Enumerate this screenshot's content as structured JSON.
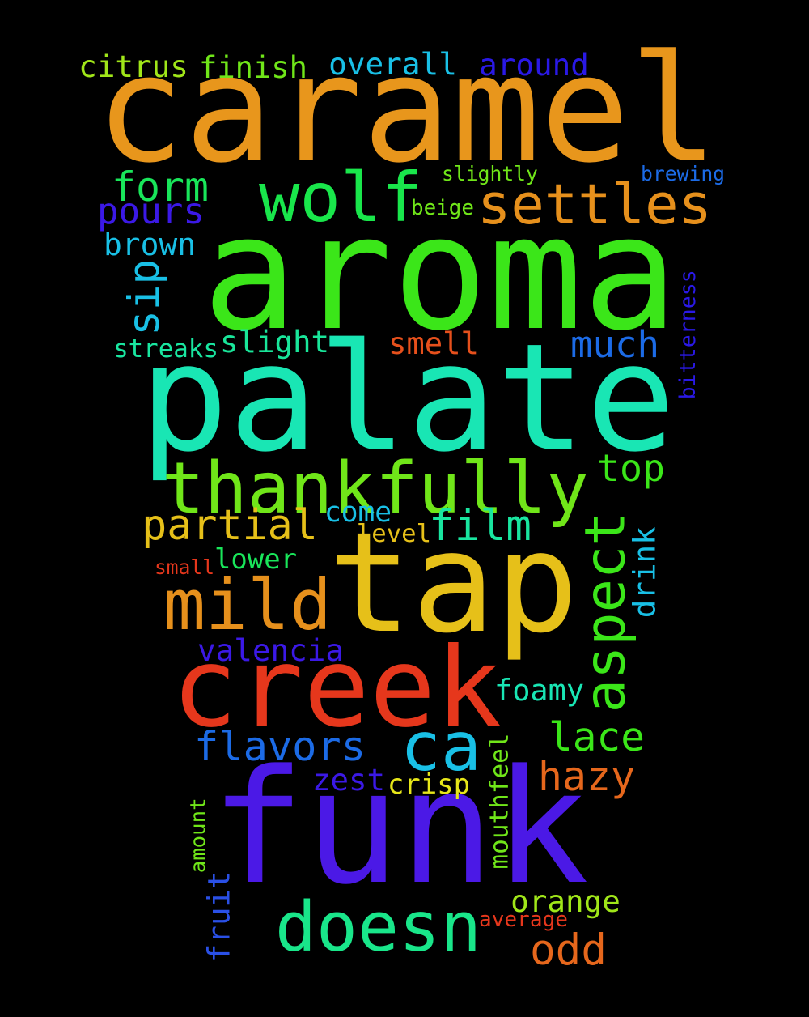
{
  "word_cloud": {
    "words": [
      {
        "id": "caramel",
        "text": "caramel",
        "color": "#e8961c"
      },
      {
        "id": "aroma",
        "text": "aroma",
        "color": "#3be619"
      },
      {
        "id": "palate",
        "text": "palate",
        "color": "#19e6b4"
      },
      {
        "id": "tap",
        "text": "tap",
        "color": "#e6c019"
      },
      {
        "id": "funk",
        "text": "funk",
        "color": "#4b19e6"
      },
      {
        "id": "creek",
        "text": "creek",
        "color": "#e6371c"
      },
      {
        "id": "thankfully",
        "text": "thankfully",
        "color": "#70e619"
      },
      {
        "id": "wolf",
        "text": "wolf",
        "color": "#19e64b"
      },
      {
        "id": "mild",
        "text": "mild",
        "color": "#e6901c"
      },
      {
        "id": "doesn",
        "text": "doesn",
        "color": "#19e68a"
      },
      {
        "id": "ca",
        "text": "ca",
        "color": "#19c0e6"
      },
      {
        "id": "aspect",
        "text": "aspect",
        "color": "#3be619"
      },
      {
        "id": "settles",
        "text": "settles",
        "color": "#e6901c"
      },
      {
        "id": "partial",
        "text": "partial",
        "color": "#e6c019"
      },
      {
        "id": "flavors",
        "text": "flavors",
        "color": "#1c6be6"
      },
      {
        "id": "film",
        "text": "film",
        "color": "#19e6a0"
      },
      {
        "id": "lace",
        "text": "lace",
        "color": "#3be619"
      },
      {
        "id": "hazy",
        "text": "hazy",
        "color": "#e6671c"
      },
      {
        "id": "odd",
        "text": "odd",
        "color": "#e6671c"
      },
      {
        "id": "form",
        "text": "form",
        "color": "#19e65a"
      },
      {
        "id": "top",
        "text": "top",
        "color": "#3be619"
      },
      {
        "id": "much",
        "text": "much",
        "color": "#1c6be6"
      },
      {
        "id": "pours",
        "text": "pours",
        "color": "#3b19e6"
      },
      {
        "id": "citrus",
        "text": "citrus",
        "color": "#a0e619"
      },
      {
        "id": "finish",
        "text": "finish",
        "color": "#70e619"
      },
      {
        "id": "overall",
        "text": "overall",
        "color": "#19c0e6"
      },
      {
        "id": "around",
        "text": "around",
        "color": "#2a19e6"
      },
      {
        "id": "sip",
        "text": "sip",
        "color": "#19c0e6"
      },
      {
        "id": "brown",
        "text": "brown",
        "color": "#19c0e6"
      },
      {
        "id": "slight",
        "text": "slight",
        "color": "#19e69a"
      },
      {
        "id": "smell",
        "text": "smell",
        "color": "#e6501c"
      },
      {
        "id": "streaks",
        "text": "streaks",
        "color": "#19e6a0"
      },
      {
        "id": "valencia",
        "text": "valencia",
        "color": "#3b19e6"
      },
      {
        "id": "foamy",
        "text": "foamy",
        "color": "#19e6b4"
      },
      {
        "id": "orange",
        "text": "orange",
        "color": "#a0e619"
      },
      {
        "id": "drink",
        "text": "drink",
        "color": "#19c0e6"
      },
      {
        "id": "come",
        "text": "come",
        "color": "#19c0e6"
      },
      {
        "id": "lower",
        "text": "lower",
        "color": "#19e65a"
      },
      {
        "id": "zest",
        "text": "zest",
        "color": "#3b19e6"
      },
      {
        "id": "crisp",
        "text": "crisp",
        "color": "#e6e619"
      },
      {
        "id": "fruit",
        "text": "fruit",
        "color": "#2a50e6"
      },
      {
        "id": "mouthfeel",
        "text": "mouthfeel",
        "color": "#70e619"
      },
      {
        "id": "level",
        "text": "level",
        "color": "#e6c019"
      },
      {
        "id": "slightly",
        "text": "slightly",
        "color": "#70e619"
      },
      {
        "id": "brewing",
        "text": "brewing",
        "color": "#1c6be6"
      },
      {
        "id": "beige",
        "text": "beige",
        "color": "#70e619"
      },
      {
        "id": "bitterness",
        "text": "bitterness",
        "color": "#2a19e6"
      },
      {
        "id": "small",
        "text": "small",
        "color": "#e6371c"
      },
      {
        "id": "amount",
        "text": "amount",
        "color": "#70e619"
      },
      {
        "id": "average",
        "text": "average",
        "color": "#e6371c"
      }
    ]
  }
}
